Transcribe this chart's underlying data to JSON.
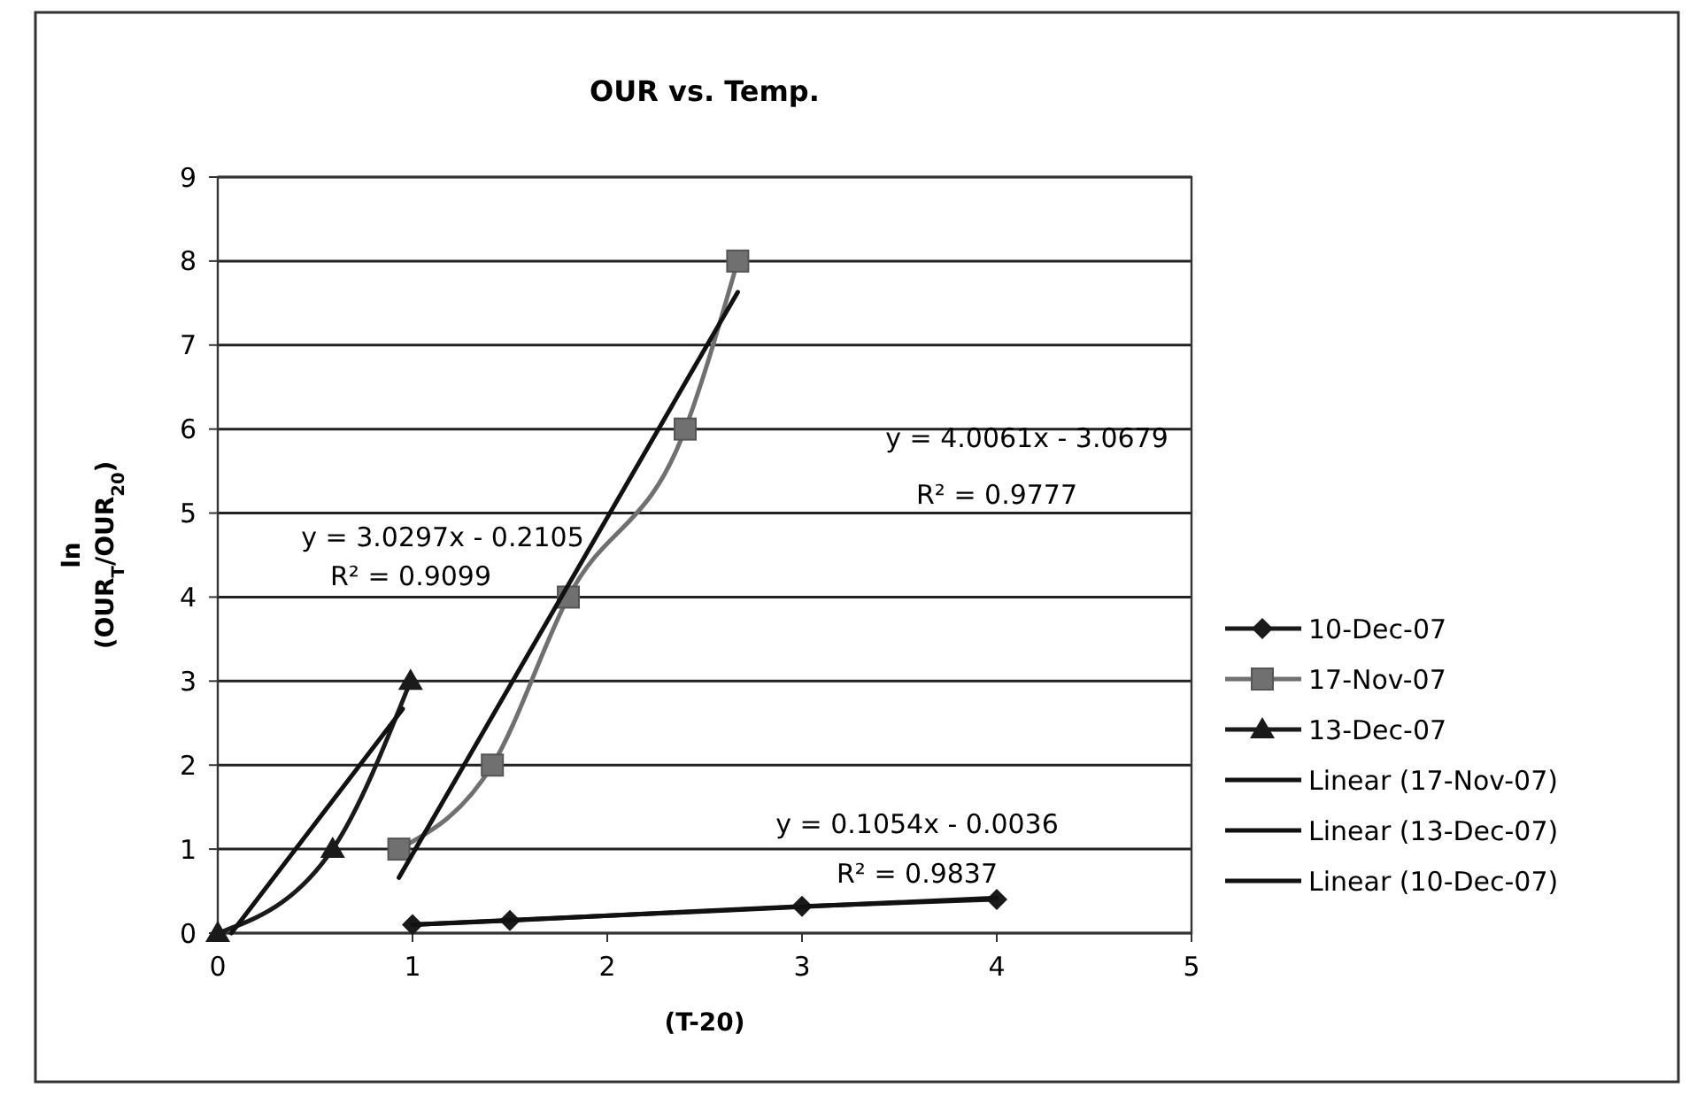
{
  "chart_data": {
    "type": "line",
    "title": "OUR vs. Temp.",
    "xlabel": "(T-20)",
    "ylabel": "ln (OUR$_{T}$/OUR$_{20}$)",
    "xlim": [
      0,
      5
    ],
    "xticks": [
      0,
      1,
      2,
      3,
      4,
      5
    ],
    "ylim": [
      0,
      9
    ],
    "yticks": [
      0,
      1,
      2,
      3,
      4,
      5,
      6,
      7,
      8,
      9
    ],
    "grid": "y",
    "legend": "right",
    "series": [
      {
        "name": "10-Dec-07",
        "color": "#1a1a1a",
        "marker": "diamond",
        "x": [
          1,
          1.5,
          3,
          4
        ],
        "values": [
          0.1,
          0.15,
          0.32,
          0.4
        ]
      },
      {
        "name": "17-Nov-07",
        "color": "#707070",
        "marker": "square",
        "x": [
          0.93,
          1.41,
          1.8,
          2.4,
          2.67
        ],
        "values": [
          1,
          2,
          4,
          6,
          8
        ]
      },
      {
        "name": "13-Dec-07",
        "color": "#1a1a1a",
        "marker": "triangle",
        "x": [
          0,
          0.59,
          0.99
        ],
        "values": [
          0,
          1,
          3
        ]
      },
      {
        "name": "Linear (17-Nov-07)",
        "type": "line",
        "color": "#111111",
        "marker": "none",
        "x": [
          0.93,
          2.67
        ],
        "values": [
          0.66,
          7.63
        ]
      },
      {
        "name": "Linear (13-Dec-07)",
        "type": "line",
        "color": "#111111",
        "marker": "none",
        "x": [
          0.07,
          0.95
        ],
        "values": [
          0,
          2.67
        ]
      },
      {
        "name": "Linear (10-Dec-07)",
        "type": "line",
        "color": "#111111",
        "marker": "none",
        "x": [
          1,
          4
        ],
        "values": [
          0.1,
          0.42
        ]
      }
    ],
    "annotations": [
      "y = 4.0061x - 3.0679",
      "R² = 0.9777",
      "y = 3.0297x - 0.2105",
      "R² = 0.9099",
      "y = 0.1054x - 0.0036",
      "R² = 0.9837"
    ]
  }
}
